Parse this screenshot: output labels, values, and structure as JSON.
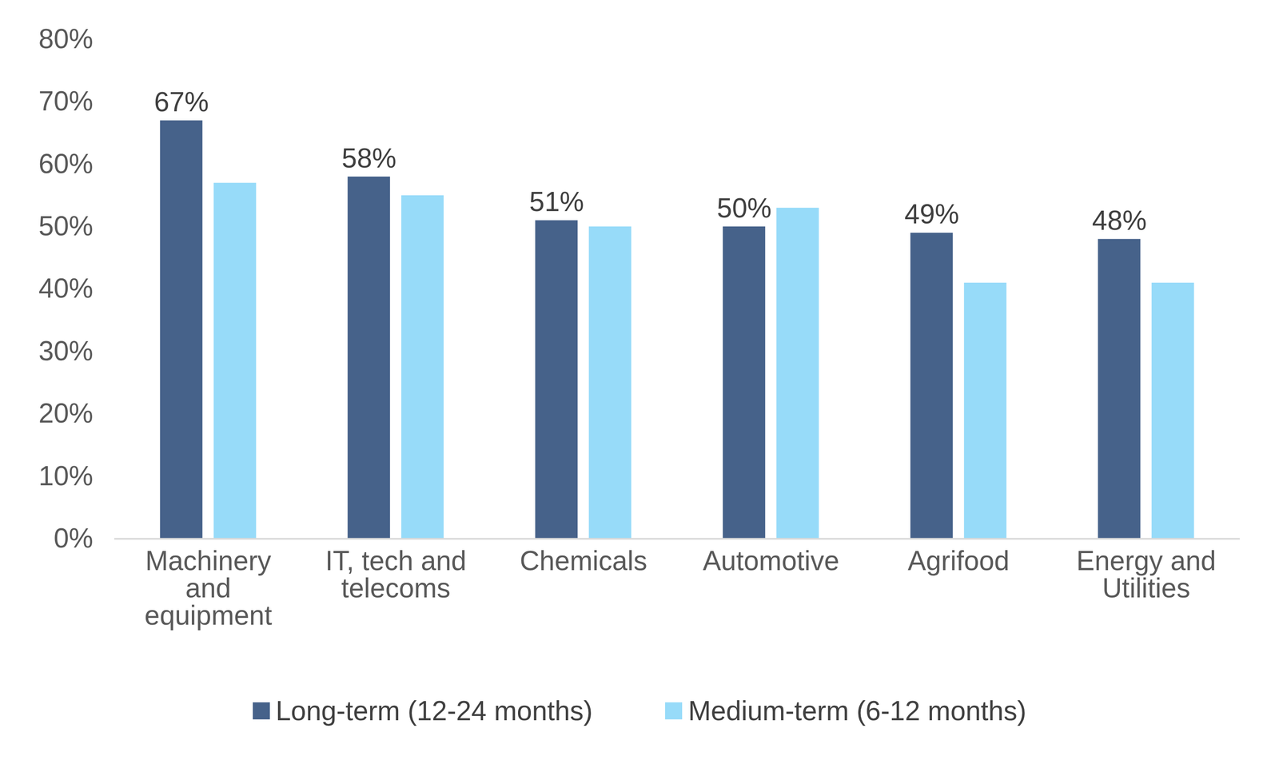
{
  "chart_data": {
    "type": "bar",
    "categories": [
      "Machinery and equipment",
      "IT, tech and telecoms",
      "Chemicals",
      "Automotive",
      "Agrifood",
      "Energy and Utilities"
    ],
    "series": [
      {
        "name": "Long-term (12-24 months)",
        "color": "#46628a",
        "values": [
          67,
          58,
          51,
          50,
          49,
          48
        ],
        "data_labels": true,
        "value_labels": [
          "67%",
          "58%",
          "51%",
          "50%",
          "49%",
          "48%"
        ]
      },
      {
        "name": "Medium-term (6-12 months)",
        "color": "#97dbf9",
        "values": [
          57,
          55,
          50,
          53,
          41,
          41
        ]
      }
    ],
    "ylim": [
      0,
      80
    ],
    "yticks": [
      {
        "value": 0,
        "label": "0%"
      },
      {
        "value": 10,
        "label": "10%"
      },
      {
        "value": 20,
        "label": "20%"
      },
      {
        "value": 30,
        "label": "30%"
      },
      {
        "value": 40,
        "label": "40%"
      },
      {
        "value": 50,
        "label": "50%"
      },
      {
        "value": 60,
        "label": "60%"
      },
      {
        "value": 70,
        "label": "70%"
      },
      {
        "value": 80,
        "label": "80%"
      }
    ],
    "grid": false,
    "legend": "bottom"
  }
}
